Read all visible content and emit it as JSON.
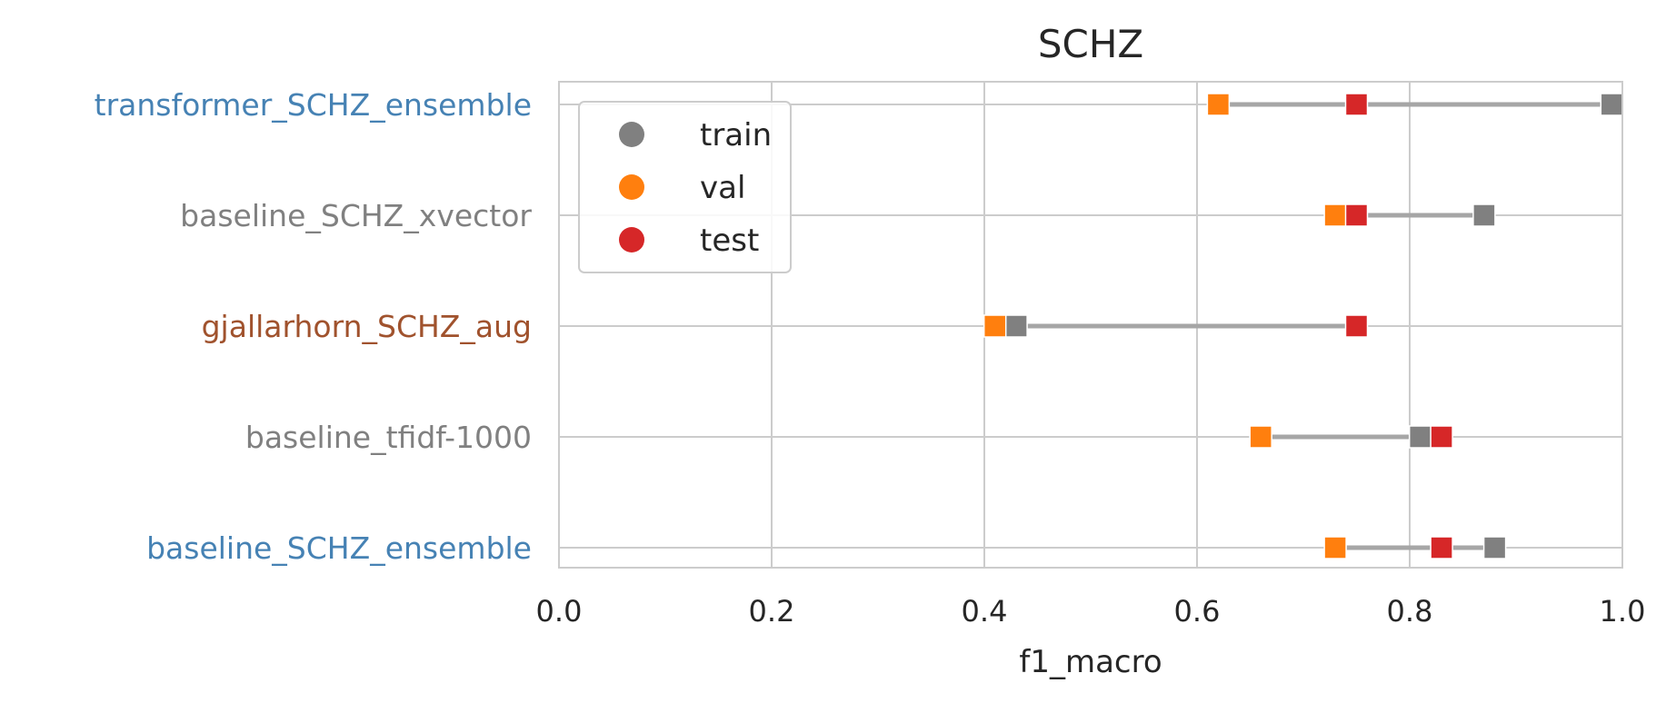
{
  "chart_data": {
    "type": "scatter",
    "title": "SCHZ",
    "xlabel": "f1_macro",
    "ylabel": "",
    "xlim": [
      0.0,
      1.0
    ],
    "x_ticks": [
      "0.0",
      "0.2",
      "0.4",
      "0.6",
      "0.8",
      "1.0"
    ],
    "x_tick_values": [
      0.0,
      0.2,
      0.4,
      0.6,
      0.8,
      1.0
    ],
    "grid": true,
    "legend_position": "top-left",
    "categories": [
      "transformer_SCHZ_ensemble",
      "baseline_SCHZ_xvector",
      "gjallarhorn_SCHZ_aug",
      "baseline_tfidf-1000",
      "baseline_SCHZ_ensemble"
    ],
    "category_colors": [
      "#4682b4",
      "#808080",
      "#a0522d",
      "#808080",
      "#4682b4"
    ],
    "series": [
      {
        "name": "train",
        "color": "#808080",
        "values": [
          0.99,
          0.87,
          0.43,
          0.81,
          0.88
        ]
      },
      {
        "name": "val",
        "color": "#ff7f0e",
        "values": [
          0.62,
          0.73,
          0.41,
          0.66,
          0.73
        ]
      },
      {
        "name": "test",
        "color": "#d62728",
        "values": [
          0.75,
          0.75,
          0.75,
          0.83,
          0.83
        ]
      }
    ],
    "range_line_color": "#a6a6a6"
  }
}
